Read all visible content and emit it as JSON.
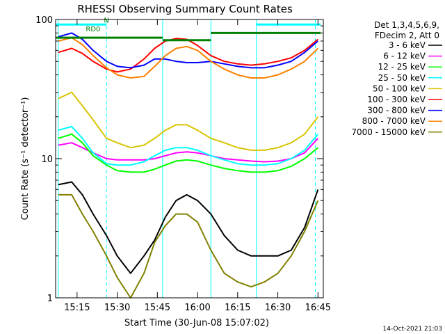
{
  "chart_data": {
    "type": "line",
    "title": "RHESSI Observing Summary Count Rates",
    "xlabel": "Start Time (30-Jun-08 15:07:02)",
    "ylabel": "Count Rate (s⁻¹ detector⁻¹)",
    "ylog": true,
    "ylim": [
      1,
      100
    ],
    "xlim": [
      "15:07",
      "16:47"
    ],
    "x_ticks": [
      "15:15",
      "15:30",
      "15:45",
      "16:00",
      "16:15",
      "16:30",
      "16:45"
    ],
    "y_ticks": [
      "1",
      "10",
      "100"
    ],
    "footer_date": "14-Oct-2021 21:03",
    "legend_header": [
      "Det 1,3,4,5,6,9,",
      "FDecim 2, Att 0"
    ],
    "legend_position": "right",
    "annotations": [
      {
        "text": "N",
        "x": "15:26",
        "y": 95
      },
      {
        "text": "RD0",
        "x": "15:21",
        "y": 82
      }
    ],
    "series": [
      {
        "name": "3 - 6 keV",
        "color": "#000000",
        "x": [
          "15:08",
          "15:13",
          "15:17",
          "15:21",
          "15:26",
          "15:30",
          "15:35",
          "15:40",
          "15:44",
          "15:48",
          "15:52",
          "15:56",
          "16:00",
          "16:05",
          "16:10",
          "16:15",
          "16:20",
          "16:25",
          "16:30",
          "16:35",
          "16:40",
          "16:45"
        ],
        "values": [
          6.5,
          6.8,
          5.5,
          4,
          2.8,
          2,
          1.5,
          2,
          2.6,
          3.8,
          5,
          5.5,
          5,
          4,
          2.8,
          2.2,
          2,
          2,
          2,
          2.2,
          3.2,
          6
        ]
      },
      {
        "name": "6 - 12 keV",
        "color": "#ff00ff",
        "x": [
          "15:08",
          "15:13",
          "15:17",
          "15:21",
          "15:26",
          "15:30",
          "15:35",
          "15:40",
          "15:44",
          "15:48",
          "15:52",
          "15:56",
          "16:00",
          "16:05",
          "16:10",
          "16:15",
          "16:20",
          "16:25",
          "16:30",
          "16:35",
          "16:40",
          "16:45"
        ],
        "values": [
          12.5,
          13,
          12,
          11,
          10,
          9.8,
          9.8,
          9.8,
          10,
          10.5,
          11,
          11.2,
          11,
          10.5,
          10,
          9.8,
          9.6,
          9.5,
          9.6,
          10,
          11,
          14
        ]
      },
      {
        "name": "12 - 25 keV",
        "color": "#00ff00",
        "x": [
          "15:08",
          "15:13",
          "15:17",
          "15:21",
          "15:26",
          "15:30",
          "15:35",
          "15:40",
          "15:44",
          "15:48",
          "15:52",
          "15:56",
          "16:00",
          "16:05",
          "16:10",
          "16:15",
          "16:20",
          "16:25",
          "16:30",
          "16:35",
          "16:40",
          "16:45"
        ],
        "values": [
          14,
          15,
          13,
          10.5,
          9,
          8.2,
          8,
          8,
          8.4,
          9,
          9.6,
          9.8,
          9.6,
          9,
          8.5,
          8.2,
          8,
          8,
          8.2,
          8.8,
          10,
          12
        ]
      },
      {
        "name": "25 - 50 keV",
        "color": "#00ffff",
        "x": [
          "15:08",
          "15:13",
          "15:17",
          "15:21",
          "15:26",
          "15:30",
          "15:35",
          "15:40",
          "15:44",
          "15:48",
          "15:52",
          "15:56",
          "16:00",
          "16:05",
          "16:10",
          "16:15",
          "16:20",
          "16:25",
          "16:30",
          "16:35",
          "16:40",
          "16:45"
        ],
        "values": [
          16,
          17,
          14,
          11,
          9.2,
          9,
          9,
          9.5,
          10.5,
          11.5,
          12,
          12,
          11.5,
          10.5,
          9.8,
          9.2,
          9,
          9,
          9.2,
          10,
          11.5,
          15
        ]
      },
      {
        "name": "50 - 100 keV",
        "color": "#d9c400",
        "x": [
          "15:08",
          "15:13",
          "15:17",
          "15:21",
          "15:26",
          "15:30",
          "15:35",
          "15:40",
          "15:44",
          "15:48",
          "15:52",
          "15:56",
          "16:00",
          "16:05",
          "16:10",
          "16:15",
          "16:20",
          "16:25",
          "16:30",
          "16:35",
          "16:40",
          "16:45"
        ],
        "values": [
          27,
          30,
          24,
          19,
          14,
          13,
          12,
          12.5,
          14,
          16,
          17.5,
          17.5,
          16,
          14,
          13,
          12,
          11.5,
          11.5,
          12,
          13,
          15,
          20
        ]
      },
      {
        "name": "100 - 300 keV",
        "color": "#ff0000",
        "x": [
          "15:08",
          "15:13",
          "15:17",
          "15:21",
          "15:26",
          "15:30",
          "15:35",
          "15:40",
          "15:44",
          "15:48",
          "15:52",
          "15:56",
          "16:00",
          "16:05",
          "16:10",
          "16:15",
          "16:20",
          "16:25",
          "16:30",
          "16:35",
          "16:40",
          "16:45"
        ],
        "values": [
          58,
          62,
          57,
          50,
          44,
          42,
          44,
          52,
          62,
          70,
          73,
          72,
          65,
          55,
          50,
          48,
          47,
          48,
          50,
          53,
          60,
          72
        ]
      },
      {
        "name": "300 - 800 keV",
        "color": "#0000ff",
        "x": [
          "15:08",
          "15:13",
          "15:17",
          "15:21",
          "15:26",
          "15:30",
          "15:35",
          "15:40",
          "15:44",
          "15:48",
          "15:52",
          "15:56",
          "16:00",
          "16:05",
          "16:10",
          "16:15",
          "16:20",
          "16:25",
          "16:30",
          "16:35",
          "16:40",
          "16:45"
        ],
        "values": [
          75,
          80,
          72,
          60,
          50,
          46,
          45,
          47,
          52,
          52,
          50,
          49,
          49,
          50,
          48,
          46,
          45,
          45,
          47,
          50,
          58,
          70
        ]
      },
      {
        "name": "800 - 7000 keV",
        "color": "#ff8000",
        "x": [
          "15:08",
          "15:13",
          "15:17",
          "15:21",
          "15:26",
          "15:30",
          "15:35",
          "15:40",
          "15:44",
          "15:48",
          "15:52",
          "15:56",
          "16:00",
          "16:05",
          "16:10",
          "16:15",
          "16:20",
          "16:25",
          "16:30",
          "16:35",
          "16:40",
          "16:45"
        ],
        "values": [
          70,
          74,
          66,
          55,
          45,
          40,
          38,
          39,
          46,
          55,
          62,
          64,
          60,
          50,
          44,
          40,
          38,
          38,
          40,
          44,
          50,
          62
        ]
      },
      {
        "name": "7000 - 15000 keV",
        "color": "#808000",
        "x": [
          "15:08",
          "15:13",
          "15:17",
          "15:21",
          "15:26",
          "15:30",
          "15:35",
          "15:40",
          "15:44",
          "15:48",
          "15:52",
          "15:56",
          "16:00",
          "16:05",
          "16:10",
          "16:15",
          "16:20",
          "16:25",
          "16:30",
          "16:35",
          "16:40",
          "16:45"
        ],
        "values": [
          5.5,
          5.5,
          4,
          3,
          2,
          1.4,
          1,
          1.5,
          2.5,
          3.3,
          4,
          4,
          3.5,
          2.2,
          1.5,
          1.3,
          1.2,
          1.3,
          1.5,
          2,
          3,
          5
        ]
      }
    ],
    "flags": [
      {
        "color": "#008000",
        "segments": [
          [
            "15:07",
            "15:47",
            74
          ],
          [
            "15:47",
            "16:05",
            71
          ],
          [
            "16:05",
            "16:46",
            80
          ]
        ]
      },
      {
        "color": "#00ffff",
        "segments": [
          [
            "15:07",
            "15:26",
            92
          ],
          [
            "16:22",
            "16:46",
            92
          ]
        ]
      }
    ],
    "vlines": {
      "color": "#00ffff",
      "solid": [
        "15:08",
        "15:47",
        "16:05",
        "16:22"
      ],
      "dashed": [
        "15:26",
        "16:44"
      ]
    }
  }
}
